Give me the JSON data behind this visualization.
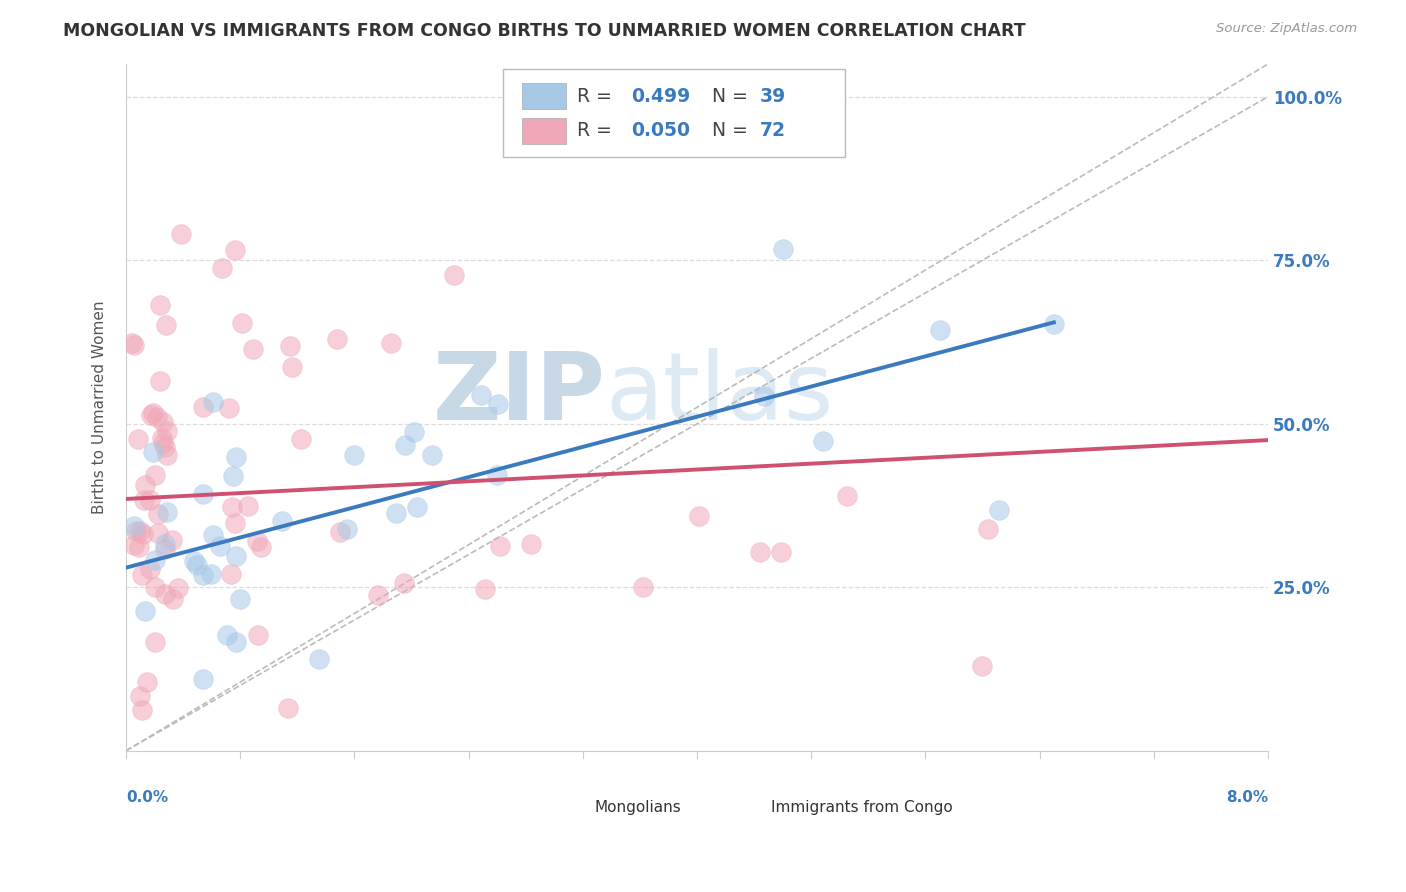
{
  "title": "MONGOLIAN VS IMMIGRANTS FROM CONGO BIRTHS TO UNMARRIED WOMEN CORRELATION CHART",
  "source": "Source: ZipAtlas.com",
  "ylabel": "Births to Unmarried Women",
  "blue_color": "#A8C8E8",
  "pink_color": "#F0A8B8",
  "blue_line_color": "#3A7ABF",
  "pink_line_color": "#D05070",
  "legend_r_blue": "0.499",
  "legend_n_blue": "39",
  "legend_r_pink": "0.050",
  "legend_n_pink": "72",
  "blue_trend_x0": 0.0,
  "blue_trend_y0": 0.28,
  "blue_trend_x1": 0.065,
  "blue_trend_y1": 0.655,
  "pink_trend_x0": 0.0,
  "pink_trend_y0": 0.385,
  "pink_trend_x1": 0.08,
  "pink_trend_y1": 0.475,
  "diag_color": "#BBBBBB",
  "grid_color": "#DDDDDD",
  "ytick_vals": [
    0.25,
    0.5,
    0.75,
    1.0
  ],
  "ytick_labels": [
    "25.0%",
    "50.0%",
    "75.0%",
    "100.0%"
  ],
  "xmin": 0.0,
  "xmax": 0.08,
  "ymin": 0.0,
  "ymax": 1.05,
  "watermark_zip_color": "#5B8DB8",
  "watermark_atlas_color": "#A8C8E0",
  "num_color": "#3A7ABF",
  "num_color_pink_row": "#3A7ABF"
}
